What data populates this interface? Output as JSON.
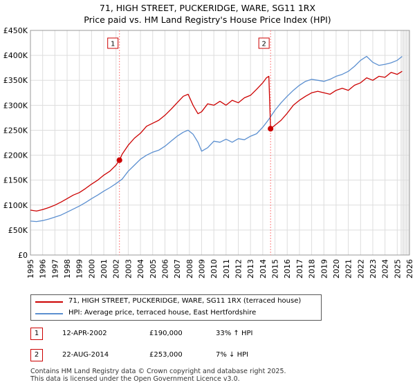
{
  "title": {
    "line1": "71, HIGH STREET, PUCKERIDGE, WARE, SG11 1RX",
    "line2": "Price paid vs. HM Land Registry's House Price Index (HPI)"
  },
  "colors": {
    "price_line": "#cc0000",
    "hpi_line": "#5b8fd0",
    "marker_line": "#ff8080",
    "grid": "#dddddd",
    "future_shade": "#eeeeee"
  },
  "chart_data": {
    "type": "line",
    "xlabel": "",
    "ylabel": "",
    "xlim": [
      1995,
      2026
    ],
    "ylim": [
      0,
      450000
    ],
    "grid": true,
    "x_ticks": [
      "1995",
      "1996",
      "1997",
      "1998",
      "1999",
      "2000",
      "2001",
      "2002",
      "2003",
      "2004",
      "2005",
      "2006",
      "2007",
      "2008",
      "2009",
      "2010",
      "2011",
      "2012",
      "2013",
      "2014",
      "2015",
      "2016",
      "2017",
      "2018",
      "2019",
      "2020",
      "2021",
      "2022",
      "2023",
      "2024",
      "2025",
      "2026"
    ],
    "y_ticks": [
      {
        "value": 0,
        "label": "£0"
      },
      {
        "value": 50000,
        "label": "£50K"
      },
      {
        "value": 100000,
        "label": "£100K"
      },
      {
        "value": 150000,
        "label": "£150K"
      },
      {
        "value": 200000,
        "label": "£200K"
      },
      {
        "value": 250000,
        "label": "£250K"
      },
      {
        "value": 300000,
        "label": "£300K"
      },
      {
        "value": 350000,
        "label": "£350K"
      },
      {
        "value": 400000,
        "label": "£400K"
      },
      {
        "value": 450000,
        "label": "£450K"
      }
    ],
    "series": [
      {
        "name": "71, HIGH STREET, PUCKERIDGE, WARE, SG11 1RX (terraced house)",
        "color": "#cc0000",
        "x": [
          1995.0,
          1995.5,
          1996.0,
          1996.5,
          1997.0,
          1997.5,
          1998.0,
          1998.5,
          1999.0,
          1999.5,
          2000.0,
          2000.5,
          2001.0,
          2001.5,
          2002.0,
          2002.28,
          2002.5,
          2003.0,
          2003.5,
          2004.0,
          2004.5,
          2005.0,
          2005.5,
          2006.0,
          2006.5,
          2007.0,
          2007.5,
          2007.9,
          2008.3,
          2008.7,
          2009.0,
          2009.5,
          2010.0,
          2010.5,
          2011.0,
          2011.5,
          2012.0,
          2012.5,
          2013.0,
          2013.5,
          2014.0,
          2014.3,
          2014.5,
          2014.64,
          2015.0,
          2015.5,
          2016.0,
          2016.5,
          2017.0,
          2017.5,
          2018.0,
          2018.5,
          2019.0,
          2019.5,
          2020.0,
          2020.5,
          2021.0,
          2021.5,
          2022.0,
          2022.5,
          2023.0,
          2023.5,
          2024.0,
          2024.5,
          2025.0,
          2025.4
        ],
        "values": [
          90000,
          88000,
          91000,
          95000,
          100000,
          106000,
          113000,
          120000,
          125000,
          133000,
          142000,
          150000,
          160000,
          168000,
          180000,
          190000,
          202000,
          220000,
          234000,
          244000,
          258000,
          264000,
          270000,
          280000,
          292000,
          305000,
          318000,
          322000,
          300000,
          283000,
          287000,
          303000,
          300000,
          308000,
          300000,
          310000,
          305000,
          315000,
          320000,
          332000,
          345000,
          355000,
          358000,
          253000,
          260000,
          270000,
          284000,
          300000,
          310000,
          318000,
          325000,
          328000,
          325000,
          322000,
          330000,
          334000,
          330000,
          340000,
          345000,
          355000,
          350000,
          358000,
          356000,
          366000,
          362000,
          368000
        ]
      },
      {
        "name": "HPI: Average price, terraced house, East Hertfordshire",
        "color": "#5b8fd0",
        "x": [
          1995.0,
          1995.5,
          1996.0,
          1996.5,
          1997.0,
          1997.5,
          1998.0,
          1998.5,
          1999.0,
          1999.5,
          2000.0,
          2000.5,
          2001.0,
          2001.5,
          2002.0,
          2002.5,
          2003.0,
          2003.5,
          2004.0,
          2004.5,
          2005.0,
          2005.5,
          2006.0,
          2006.5,
          2007.0,
          2007.5,
          2007.9,
          2008.3,
          2008.7,
          2009.0,
          2009.5,
          2010.0,
          2010.5,
          2011.0,
          2011.5,
          2012.0,
          2012.5,
          2013.0,
          2013.5,
          2014.0,
          2014.5,
          2015.0,
          2015.5,
          2016.0,
          2016.5,
          2017.0,
          2017.5,
          2018.0,
          2018.5,
          2019.0,
          2019.5,
          2020.0,
          2020.5,
          2021.0,
          2021.5,
          2022.0,
          2022.5,
          2023.0,
          2023.5,
          2024.0,
          2024.5,
          2025.0,
          2025.4
        ],
        "values": [
          68000,
          67000,
          69000,
          72000,
          76000,
          80000,
          86000,
          92000,
          98000,
          105000,
          113000,
          120000,
          128000,
          135000,
          143000,
          152000,
          168000,
          180000,
          192000,
          200000,
          206000,
          210000,
          218000,
          228000,
          238000,
          246000,
          250000,
          242000,
          226000,
          208000,
          215000,
          228000,
          226000,
          232000,
          226000,
          233000,
          231000,
          238000,
          243000,
          256000,
          272000,
          290000,
          305000,
          318000,
          330000,
          340000,
          348000,
          352000,
          350000,
          348000,
          352000,
          358000,
          362000,
          368000,
          378000,
          390000,
          398000,
          386000,
          380000,
          382000,
          385000,
          390000,
          398000
        ]
      }
    ],
    "sales": [
      {
        "id": "1",
        "x": 2002.28,
        "value": 190000
      },
      {
        "id": "2",
        "x": 2014.64,
        "value": 253000
      }
    ],
    "shaded_after": 2025.3
  },
  "legend": {
    "price_label": "71, HIGH STREET, PUCKERIDGE, WARE, SG11 1RX (terraced house)",
    "hpi_label": "HPI: Average price, terraced house, East Hertfordshire"
  },
  "sales_table": [
    {
      "id": "1",
      "date": "12-APR-2002",
      "price": "£190,000",
      "hpi": "33% ↑ HPI"
    },
    {
      "id": "2",
      "date": "22-AUG-2014",
      "price": "£253,000",
      "hpi": "7% ↓ HPI"
    }
  ],
  "footer": {
    "line1": "Contains HM Land Registry data © Crown copyright and database right 2025.",
    "line2": "This data is licensed under the Open Government Licence v3.0."
  }
}
